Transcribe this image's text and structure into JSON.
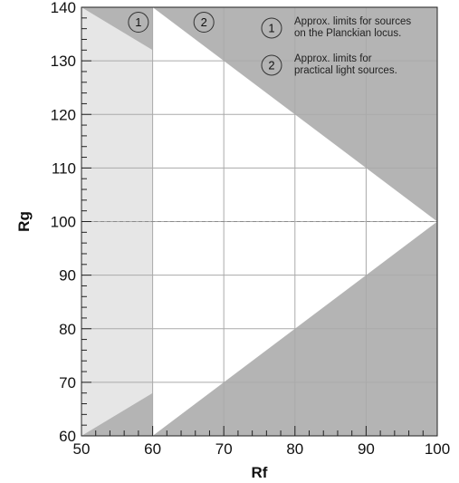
{
  "chart_data": {
    "type": "area",
    "xlabel": "Rf",
    "ylabel": "Rg",
    "xlim": [
      50,
      100
    ],
    "ylim": [
      60,
      140
    ],
    "x_ticks": [
      50,
      60,
      70,
      80,
      90,
      100
    ],
    "y_ticks": [
      60,
      70,
      80,
      90,
      100,
      110,
      120,
      130,
      140
    ],
    "reference_line_y": 100,
    "grid": true,
    "colors": {
      "region_1": "#e6e6e6",
      "region_2": "#b4b4b4",
      "inner": "#ffffff",
      "grid": "#aaaaaa",
      "reference_line": "#aaaaaa"
    },
    "regions": [
      {
        "id": "1",
        "label": "Approx. limits for sources on the Planckian locus.",
        "points": [
          [
            100,
            100
          ],
          [
            50,
            140
          ],
          [
            50,
            60
          ]
        ]
      },
      {
        "id": "2",
        "label": "Approx. limits for practical light sources.",
        "points": [
          [
            100,
            100
          ],
          [
            60,
            140
          ],
          [
            60,
            60
          ]
        ]
      }
    ],
    "plot_markers": [
      {
        "label": "1",
        "x": 58,
        "y": 137.2
      },
      {
        "label": "2",
        "x": 67.2,
        "y": 137.2
      }
    ],
    "legend": {
      "placement": "top-right",
      "entries": [
        {
          "label": "1",
          "lines": [
            "Approx. limits for sources",
            "on the Planckian locus."
          ]
        },
        {
          "label": "2",
          "lines": [
            "Approx. limits for",
            "practical light sources."
          ]
        }
      ]
    }
  }
}
